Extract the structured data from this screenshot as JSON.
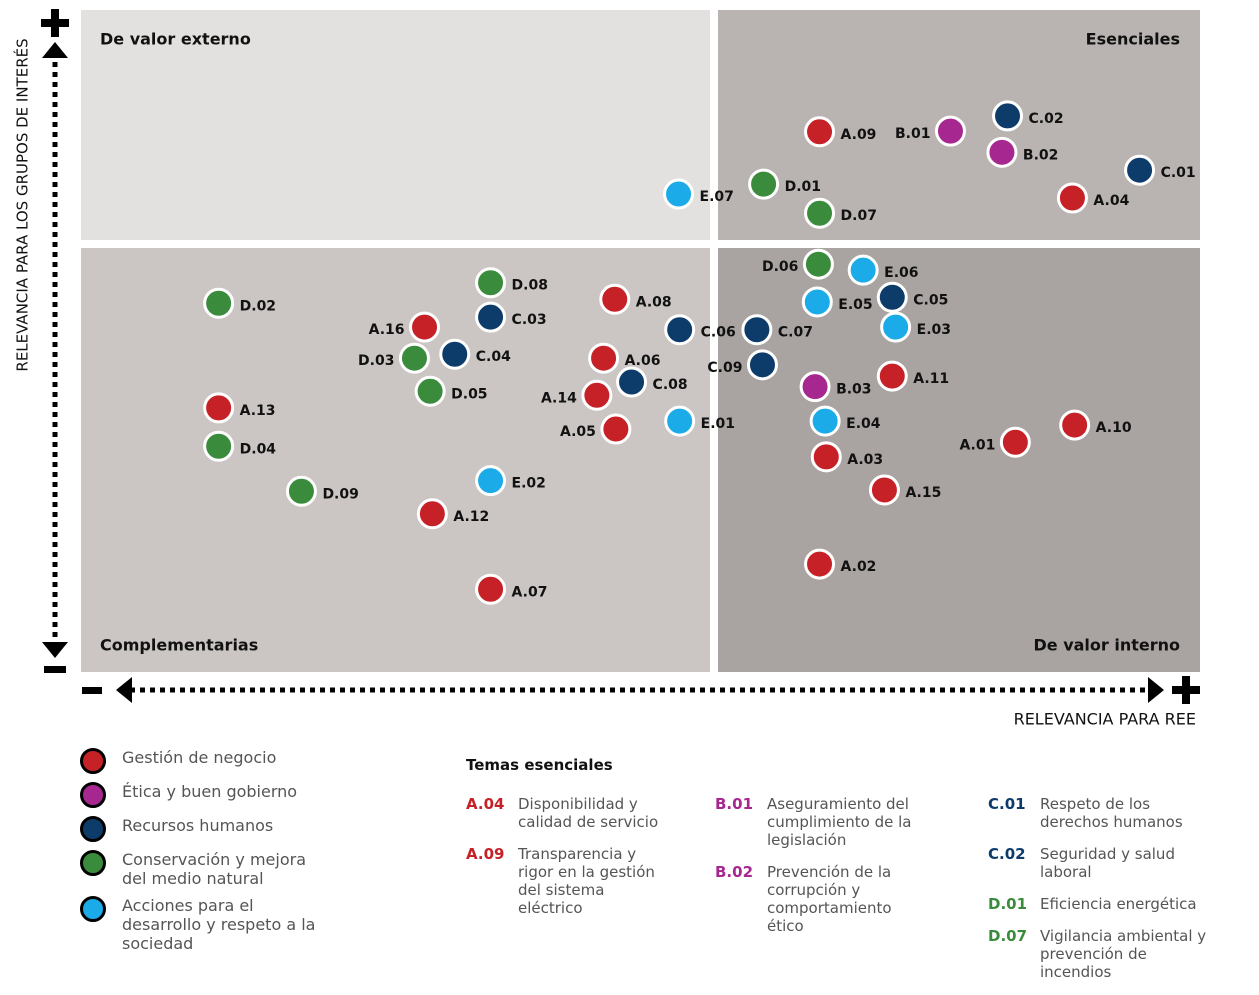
{
  "chart_data": {
    "type": "scatter",
    "x_label": "RELEVANCIA PARA REE",
    "y_label": "RELEVANCIA PARA LOS GRUPOS DE INTERÉS",
    "quadrants": [
      "De valor externo",
      "Esenciales",
      "Complementarias",
      "De valor interno"
    ],
    "xlim": [
      0,
      100
    ],
    "ylim": [
      0,
      100
    ],
    "series": [
      {
        "name": "Gestión de negocio",
        "color": "#c62127",
        "labels": [
          "A.09",
          "A.04",
          "A.11",
          "A.10",
          "A.01",
          "A.03",
          "A.15",
          "A.02",
          "A.08",
          "A.16",
          "A.06",
          "A.14",
          "A.13",
          "A.05",
          "A.12",
          "A.07"
        ],
        "x": [
          66.0,
          88.6,
          72.5,
          88.8,
          83.5,
          66.6,
          71.8,
          66.0,
          47.7,
          30.7,
          46.7,
          46.1,
          12.3,
          47.8,
          31.4,
          36.6
        ],
        "y": [
          81.6,
          71.6,
          44.7,
          37.3,
          34.7,
          32.5,
          27.5,
          16.3,
          56.3,
          52.1,
          47.4,
          41.8,
          39.9,
          36.7,
          23.9,
          12.5
        ]
      },
      {
        "name": "Ética y buen gobierno",
        "color": "#a6278f",
        "labels": [
          "B.01",
          "B.02",
          "B.03"
        ],
        "x": [
          77.7,
          82.3,
          65.6
        ],
        "y": [
          81.7,
          78.5,
          43.1
        ]
      },
      {
        "name": "Recursos humanos",
        "color": "#0e3c6a",
        "labels": [
          "C.02",
          "C.01",
          "C.05",
          "C.07",
          "C.09",
          "C.03",
          "C.06",
          "C.04",
          "C.08"
        ],
        "x": [
          82.8,
          94.6,
          72.5,
          60.4,
          60.9,
          36.6,
          53.5,
          33.4,
          49.2
        ],
        "y": [
          84.0,
          75.8,
          56.6,
          51.7,
          46.4,
          53.6,
          51.7,
          48.0,
          43.8
        ]
      },
      {
        "name": "Conservación y mejora del medio natural",
        "color": "#3a8b3c",
        "labels": [
          "D.01",
          "D.07",
          "D.06",
          "D.02",
          "D.08",
          "D.03",
          "D.05",
          "D.04",
          "D.09"
        ],
        "x": [
          61.0,
          66.0,
          65.9,
          12.3,
          36.6,
          29.8,
          31.2,
          12.3,
          19.7
        ],
        "y": [
          73.7,
          69.3,
          61.6,
          55.7,
          58.8,
          47.4,
          42.4,
          34.1,
          27.3
        ]
      },
      {
        "name": "Acciones para el desarrollo y respeto a la sociedad",
        "color": "#1aabe8",
        "labels": [
          "E.07",
          "E.06",
          "E.05",
          "E.03",
          "E.04",
          "E.01",
          "E.02"
        ],
        "x": [
          53.4,
          69.9,
          65.8,
          72.8,
          66.5,
          53.5,
          36.6
        ],
        "y": [
          72.2,
          60.7,
          55.9,
          52.1,
          37.9,
          37.9,
          28.9
        ]
      }
    ],
    "essentials": {
      "title": "Temas esenciales",
      "columns": [
        [
          {
            "code": "A.04",
            "text": "Disponibilidad y calidad de servicio"
          },
          {
            "code": "A.09",
            "text": "Transparencia y rigor en la gestión del sistema eléctrico"
          }
        ],
        [
          {
            "code": "B.01",
            "text": "Aseguramiento del cumplimiento de la legislación"
          },
          {
            "code": "B.02",
            "text": "Prevención de la corrupción y comportamiento ético"
          }
        ],
        [
          {
            "code": "C.01",
            "text": "Respeto de los derechos humanos"
          },
          {
            "code": "C.02",
            "text": "Seguridad y salud laboral"
          },
          {
            "code": "D.01",
            "text": "Eficiencia energética"
          },
          {
            "code": "D.07",
            "text": "Vigilancia ambiental y prevención de incendios"
          }
        ]
      ]
    }
  }
}
